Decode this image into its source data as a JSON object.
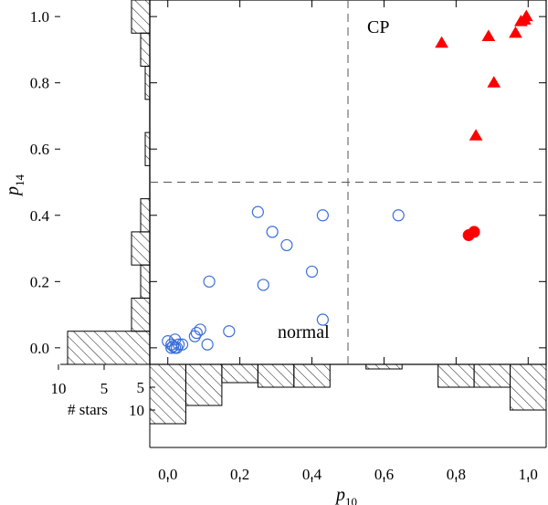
{
  "chart_data": [
    {
      "type": "scatter",
      "xlabel": "p",
      "xlabel_sub": "10",
      "ylabel": "p",
      "ylabel_sub": "14",
      "xlim": [
        -0.05,
        1.05
      ],
      "ylim": [
        -0.05,
        1.05
      ],
      "x_ticks": [
        "0.0",
        "0.2",
        "0.4",
        "0.6",
        "0.8",
        "1.0"
      ],
      "y_ticks": [
        "0.0",
        "0.2",
        "0.4",
        "0.6",
        "0.8",
        "1.0"
      ],
      "x_tick_values": [
        0.0,
        0.2,
        0.4,
        0.6,
        0.8,
        1.0
      ],
      "y_tick_values": [
        0.0,
        0.2,
        0.4,
        0.6,
        0.8,
        1.0
      ],
      "dividers": {
        "x": 0.5,
        "y": 0.5
      },
      "annotations": [
        "CP",
        "normal"
      ],
      "colors": {
        "normal": "#3a6fd8",
        "cp": "#ff0000"
      },
      "series": [
        {
          "marker": "open-circle",
          "points": [
            [
              0.0,
              0.02
            ],
            [
              0.01,
              0.0
            ],
            [
              0.01,
              0.01
            ],
            [
              0.015,
              0.005
            ],
            [
              0.02,
              0.0
            ],
            [
              0.02,
              0.025
            ],
            [
              0.025,
              0.0
            ],
            [
              0.03,
              0.01
            ],
            [
              0.04,
              0.01
            ],
            [
              0.075,
              0.035
            ],
            [
              0.08,
              0.045
            ],
            [
              0.09,
              0.055
            ],
            [
              0.11,
              0.01
            ],
            [
              0.115,
              0.2
            ],
            [
              0.17,
              0.05
            ],
            [
              0.25,
              0.41
            ],
            [
              0.265,
              0.19
            ],
            [
              0.29,
              0.35
            ],
            [
              0.33,
              0.31
            ],
            [
              0.4,
              0.23
            ],
            [
              0.43,
              0.085
            ],
            [
              0.43,
              0.4
            ],
            [
              0.64,
              0.4
            ]
          ]
        },
        {
          "marker": "filled-circle",
          "points": [
            [
              0.835,
              0.34
            ],
            [
              0.85,
              0.35
            ]
          ]
        },
        {
          "marker": "filled-triangle",
          "points": [
            [
              0.76,
              0.92
            ],
            [
              0.855,
              0.64
            ],
            [
              0.89,
              0.94
            ],
            [
              0.905,
              0.8
            ],
            [
              0.965,
              0.95
            ],
            [
              0.98,
              0.985
            ],
            [
              0.99,
              0.99
            ],
            [
              0.995,
              1.0
            ]
          ]
        }
      ]
    },
    {
      "type": "histogram",
      "orientation": "horizontal",
      "description_axis": "p14",
      "xlabel": "# stars",
      "x_ticks": [
        "10",
        "5"
      ],
      "x_tick_values": [
        10,
        5
      ],
      "bins": [
        {
          "y0": -0.05,
          "y1": 0.05,
          "count": 9
        },
        {
          "y0": 0.05,
          "y1": 0.15,
          "count": 2
        },
        {
          "y0": 0.15,
          "y1": 0.25,
          "count": 1
        },
        {
          "y0": 0.25,
          "y1": 0.35,
          "count": 2
        },
        {
          "y0": 0.35,
          "y1": 0.45,
          "count": 1
        },
        {
          "y0": 0.45,
          "y1": 0.55,
          "count": 0
        },
        {
          "y0": 0.55,
          "y1": 0.65,
          "count": 0.5
        },
        {
          "y0": 0.65,
          "y1": 0.75,
          "count": 0
        },
        {
          "y0": 0.75,
          "y1": 0.85,
          "count": 0.5
        },
        {
          "y0": 0.85,
          "y1": 0.95,
          "count": 1
        },
        {
          "y0": 0.95,
          "y1": 1.05,
          "count": 2
        }
      ]
    },
    {
      "type": "histogram",
      "orientation": "vertical",
      "description_axis": "p10",
      "ylabel": "# stars",
      "y_ticks": [
        "5",
        "10"
      ],
      "y_tick_values": [
        5,
        10
      ],
      "bins": [
        {
          "x0": -0.05,
          "x1": 0.05,
          "count": 13
        },
        {
          "x0": 0.05,
          "x1": 0.15,
          "count": 9
        },
        {
          "x0": 0.15,
          "x1": 0.25,
          "count": 4
        },
        {
          "x0": 0.25,
          "x1": 0.35,
          "count": 5
        },
        {
          "x0": 0.35,
          "x1": 0.45,
          "count": 5
        },
        {
          "x0": 0.45,
          "x1": 0.55,
          "count": 0
        },
        {
          "x0": 0.55,
          "x1": 0.65,
          "count": 1
        },
        {
          "x0": 0.65,
          "x1": 0.75,
          "count": 0
        },
        {
          "x0": 0.75,
          "x1": 0.85,
          "count": 5
        },
        {
          "x0": 0.85,
          "x1": 0.95,
          "count": 5
        },
        {
          "x0": 0.95,
          "x1": 1.05,
          "count": 10
        }
      ]
    }
  ]
}
